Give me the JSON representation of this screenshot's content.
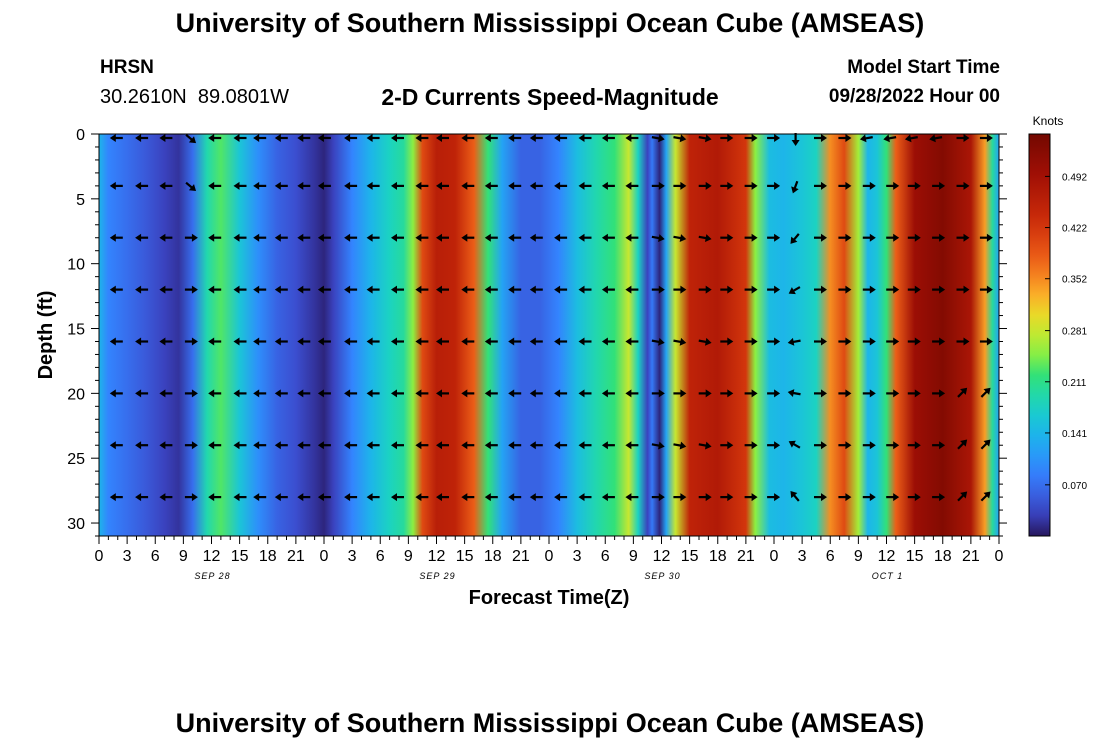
{
  "header": {
    "title": "University of Southern Mississippi Ocean Cube (AMSEAS)",
    "station": "HRSN",
    "coords": "30.2610N  89.0801W",
    "subtitle": "2-D Currents Speed-Magnitude",
    "model_start_label": "Model Start Time",
    "model_start_time": "09/28/2022 Hour 00"
  },
  "footer": {
    "title": "University of Southern Mississippi Ocean Cube (AMSEAS)"
  },
  "chart_data": {
    "type": "heatmap",
    "title": "2-D Currents Speed-Magnitude",
    "xlabel": "Forecast Time(Z)",
    "ylabel": "Depth (ft)",
    "xlim": [
      0,
      96
    ],
    "ylim": [
      31,
      0
    ],
    "x_ticks": [
      0,
      3,
      6,
      9,
      12,
      15,
      18,
      21,
      24,
      27,
      30,
      33,
      36,
      39,
      42,
      45,
      48,
      51,
      54,
      57,
      60,
      63,
      66,
      69,
      72,
      75,
      78,
      81,
      84,
      87,
      90,
      93,
      96
    ],
    "x_tick_labels": [
      "0",
      "3",
      "6",
      "9",
      "12",
      "15",
      "18",
      "21",
      "0",
      "3",
      "6",
      "9",
      "12",
      "15",
      "18",
      "21",
      "0",
      "3",
      "6",
      "9",
      "12",
      "15",
      "18",
      "21",
      "0",
      "3",
      "6",
      "9",
      "12",
      "15",
      "18",
      "21",
      "0"
    ],
    "y_ticks": [
      0,
      5,
      10,
      15,
      20,
      25,
      30
    ],
    "y_tick_labels": [
      "0",
      "5",
      "10",
      "15",
      "20",
      "25",
      "30"
    ],
    "date_labels": [
      {
        "x": 12,
        "label": "SEP 28"
      },
      {
        "x": 36,
        "label": "SEP 29"
      },
      {
        "x": 60,
        "label": "SEP 30"
      },
      {
        "x": 84,
        "label": "OCT 1"
      }
    ],
    "colorbar": {
      "unit": "Knots",
      "vmin": 0.0,
      "vmax": 0.55,
      "ticks": [
        0.07,
        0.141,
        0.211,
        0.281,
        0.352,
        0.422,
        0.492
      ],
      "tick_labels": [
        "0.070",
        "0.141",
        "0.211",
        "0.281",
        "0.352",
        "0.422",
        "0.492"
      ]
    },
    "surface_speed_knots": [
      {
        "x": 0,
        "v": 0.14
      },
      {
        "x": 1,
        "v": 0.09
      },
      {
        "x": 3,
        "v": 0.07
      },
      {
        "x": 5,
        "v": 0.05
      },
      {
        "x": 7,
        "v": 0.03
      },
      {
        "x": 8.5,
        "v": 0.02
      },
      {
        "x": 10,
        "v": 0.07
      },
      {
        "x": 11.5,
        "v": 0.19
      },
      {
        "x": 13,
        "v": 0.23
      },
      {
        "x": 15,
        "v": 0.16
      },
      {
        "x": 17,
        "v": 0.1
      },
      {
        "x": 19,
        "v": 0.06
      },
      {
        "x": 21,
        "v": 0.04
      },
      {
        "x": 23,
        "v": 0.02
      },
      {
        "x": 24,
        "v": 0.01
      },
      {
        "x": 25,
        "v": 0.03
      },
      {
        "x": 27,
        "v": 0.09
      },
      {
        "x": 29,
        "v": 0.14
      },
      {
        "x": 31,
        "v": 0.18
      },
      {
        "x": 32.5,
        "v": 0.2
      },
      {
        "x": 33.5,
        "v": 0.25
      },
      {
        "x": 34.5,
        "v": 0.4
      },
      {
        "x": 36,
        "v": 0.46
      },
      {
        "x": 38,
        "v": 0.45
      },
      {
        "x": 40,
        "v": 0.38
      },
      {
        "x": 41.5,
        "v": 0.22
      },
      {
        "x": 43,
        "v": 0.12
      },
      {
        "x": 45,
        "v": 0.06
      },
      {
        "x": 47,
        "v": 0.06
      },
      {
        "x": 49,
        "v": 0.09
      },
      {
        "x": 51,
        "v": 0.15
      },
      {
        "x": 53,
        "v": 0.19
      },
      {
        "x": 55,
        "v": 0.22
      },
      {
        "x": 56.5,
        "v": 0.28
      },
      {
        "x": 57.5,
        "v": 0.18
      },
      {
        "x": 58.5,
        "v": 0.03
      },
      {
        "x": 59,
        "v": 0.08
      },
      {
        "x": 59.8,
        "v": 0.01
      },
      {
        "x": 60.5,
        "v": 0.12
      },
      {
        "x": 61.5,
        "v": 0.28
      },
      {
        "x": 63,
        "v": 0.45
      },
      {
        "x": 66,
        "v": 0.47
      },
      {
        "x": 69,
        "v": 0.42
      },
      {
        "x": 70,
        "v": 0.25
      },
      {
        "x": 71.5,
        "v": 0.15
      },
      {
        "x": 73,
        "v": 0.14
      },
      {
        "x": 75,
        "v": 0.16
      },
      {
        "x": 76.5,
        "v": 0.18
      },
      {
        "x": 78,
        "v": 0.35
      },
      {
        "x": 79.5,
        "v": 0.4
      },
      {
        "x": 81,
        "v": 0.26
      },
      {
        "x": 82,
        "v": 0.14
      },
      {
        "x": 83,
        "v": 0.16
      },
      {
        "x": 84,
        "v": 0.22
      },
      {
        "x": 85,
        "v": 0.38
      },
      {
        "x": 87,
        "v": 0.5
      },
      {
        "x": 90,
        "v": 0.53
      },
      {
        "x": 93,
        "v": 0.48
      },
      {
        "x": 94.5,
        "v": 0.34
      },
      {
        "x": 95.3,
        "v": 0.2
      },
      {
        "x": 96,
        "v": 0.12
      }
    ],
    "vector_depths": [
      0,
      4,
      8,
      12,
      16,
      20,
      24,
      28
    ],
    "vector_times": [
      2,
      4.7,
      7.3,
      9.7,
      12.5,
      15.2,
      17.3,
      19.6,
      22,
      24.2,
      27,
      29.4,
      32,
      34.6,
      36.8,
      39.5,
      42,
      44.5,
      46.8,
      49.4,
      52,
      54.5,
      57,
      59.5,
      61.8,
      64.5,
      66.8,
      69.4,
      71.8,
      74.3,
      76.8,
      79.4,
      82,
      84.5,
      86.8,
      89.4,
      92,
      94.5
    ]
  }
}
